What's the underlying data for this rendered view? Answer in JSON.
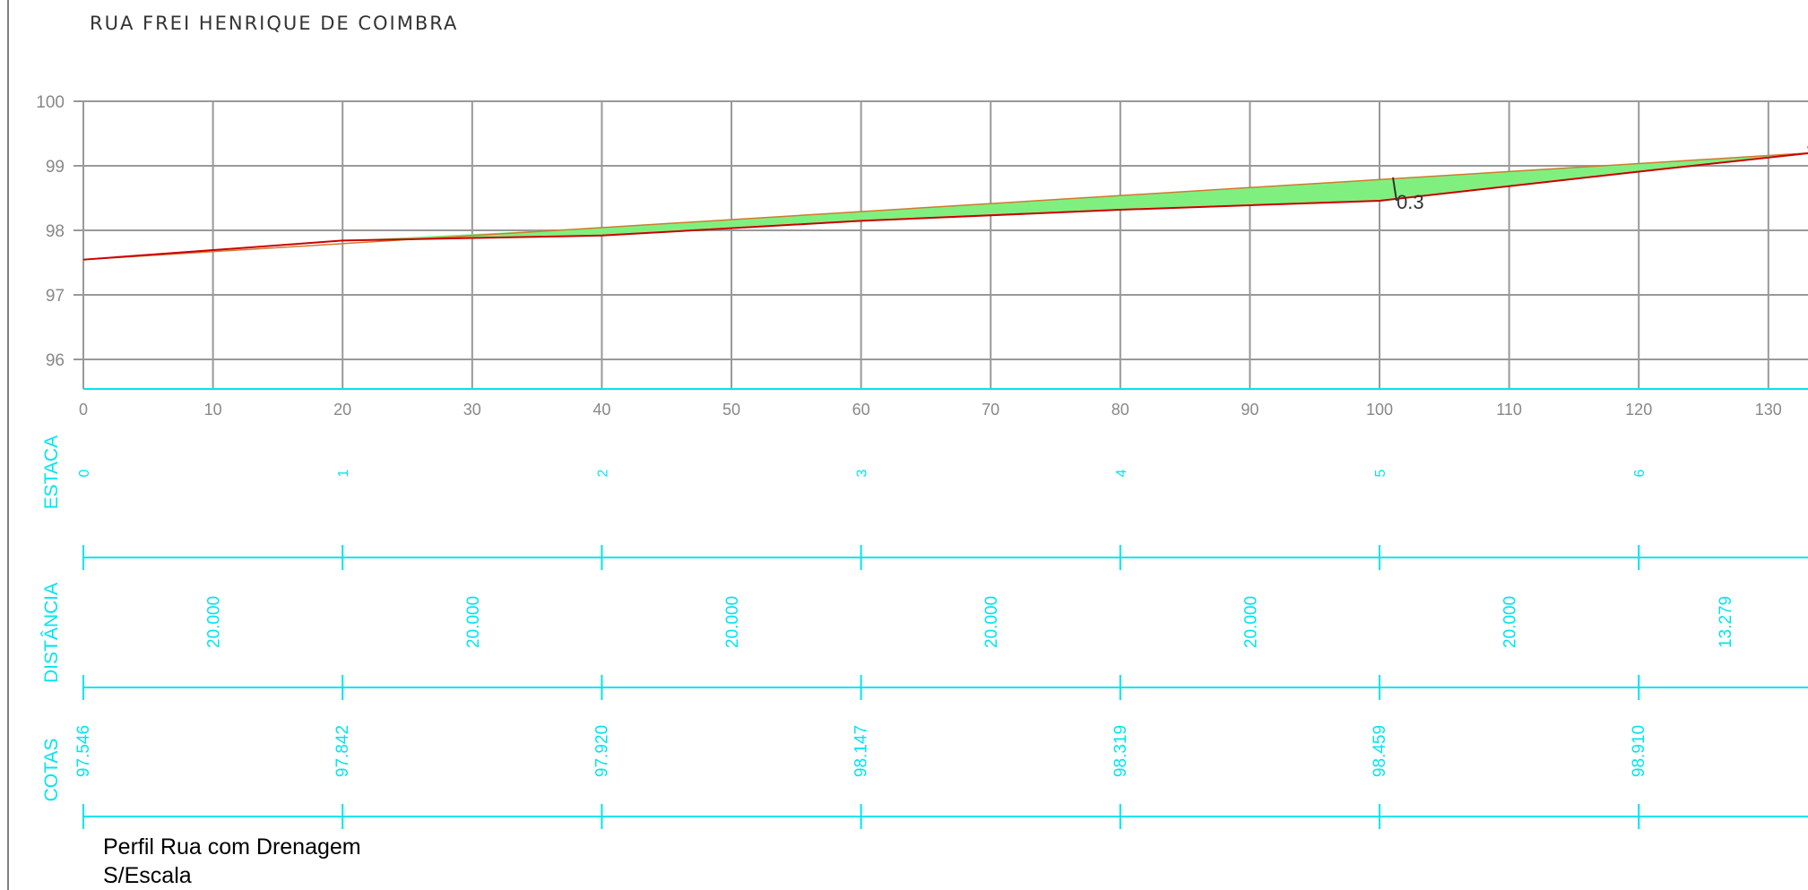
{
  "street_name": "RUA FREI HENRIQUE DE COIMBRA",
  "caption": {
    "line1": "Perfil Rua com Drenagem",
    "line2": "S/Escala"
  },
  "rows": {
    "estaca": "ESTACA",
    "distancia": "DISTÂNCIA",
    "cotas": "COTAS"
  },
  "annotation": "0.3",
  "colors": {
    "terrain": "#cc0000",
    "fill": "#7ff07f",
    "grid": "#999999",
    "cyan": "#00e5f0",
    "text": "#888888"
  },
  "chart_data": {
    "type": "line",
    "title": "",
    "xlabel": "",
    "ylabel": "",
    "xlim": [
      0,
      133.279
    ],
    "ylim": [
      95.55,
      100
    ],
    "x_ticks": [
      "0",
      "10",
      "20",
      "30",
      "40",
      "50",
      "60",
      "70",
      "80",
      "90",
      "100",
      "110",
      "120",
      "130"
    ],
    "y_ticks": [
      "96",
      "97",
      "98",
      "99",
      "100"
    ],
    "grid": true,
    "series": [
      {
        "x": [
          0,
          20,
          40,
          60,
          80,
          100,
          120,
          133.279
        ],
        "values": [
          97.546,
          97.842,
          97.92,
          98.147,
          98.319,
          98.459,
          98.91,
          99.2
        ]
      },
      {
        "x": [
          0,
          133.279
        ],
        "values": [
          97.546,
          99.2
        ]
      }
    ],
    "stations": {
      "estaca": [
        "0",
        "1",
        "2",
        "3",
        "4",
        "5",
        "6"
      ],
      "distancia": [
        "20.000",
        "20.000",
        "20.000",
        "20.000",
        "20.000",
        "20.000",
        "13.279"
      ],
      "cotas": [
        "97.546",
        "97.842",
        "97.920",
        "98.147",
        "98.319",
        "98.459",
        "98.910"
      ]
    }
  }
}
